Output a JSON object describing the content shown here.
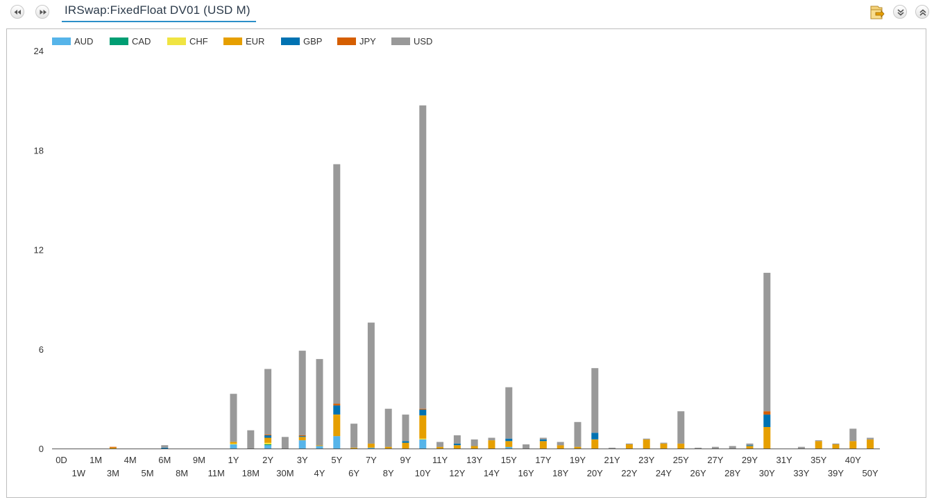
{
  "header": {
    "title": "IRSwap:FixedFloat DV01 (USD M)",
    "buttons": {
      "prev_icon": "rewind-icon",
      "next_icon": "fast-forward-icon",
      "export_icon": "folder-export-icon",
      "collapse_icon": "chevron-double-down-icon",
      "expand_icon": "chevron-double-up-icon"
    }
  },
  "colors": {
    "AUD": "#56b4e9",
    "CAD": "#009e73",
    "CHF": "#f0e442",
    "EUR": "#e69f00",
    "GBP": "#0072b2",
    "JPY": "#d55e00",
    "USD": "#999999",
    "accent": "#2c8fc8"
  },
  "chart_data": {
    "type": "bar",
    "stacked": true,
    "legend_position": "top-left",
    "grid": false,
    "ylim": [
      0,
      24
    ],
    "yticks": [
      "0",
      "6",
      "12",
      "18",
      "24"
    ],
    "categories": [
      "0D",
      "1W",
      "1M",
      "3M",
      "4M",
      "5M",
      "6M",
      "8M",
      "9M",
      "11M",
      "1Y",
      "18M",
      "2Y",
      "30M",
      "3Y",
      "4Y",
      "5Y",
      "6Y",
      "7Y",
      "8Y",
      "9Y",
      "10Y",
      "11Y",
      "12Y",
      "13Y",
      "14Y",
      "15Y",
      "16Y",
      "17Y",
      "18Y",
      "19Y",
      "20Y",
      "21Y",
      "22Y",
      "23Y",
      "24Y",
      "25Y",
      "26Y",
      "27Y",
      "28Y",
      "29Y",
      "30Y",
      "31Y",
      "33Y",
      "35Y",
      "39Y",
      "40Y",
      "50Y"
    ],
    "series": [
      {
        "name": "AUD",
        "values": [
          0,
          0,
          0,
          0,
          0,
          0,
          0,
          0,
          0,
          0,
          0.25,
          0,
          0.2,
          0,
          0.5,
          0.15,
          0.75,
          0,
          0.05,
          0,
          0,
          0.55,
          0,
          0,
          0,
          0,
          0.1,
          0,
          0,
          0,
          0,
          0,
          0,
          0,
          0,
          0,
          0,
          0,
          0,
          0,
          0,
          0,
          0,
          0,
          0,
          0,
          0,
          0
        ]
      },
      {
        "name": "CAD",
        "values": [
          0,
          0,
          0,
          0,
          0,
          0,
          0,
          0,
          0,
          0,
          0,
          0,
          0.05,
          0,
          0,
          0,
          0,
          0,
          0,
          0,
          0,
          0,
          0,
          0,
          0,
          0,
          0,
          0,
          0,
          0,
          0,
          0,
          0,
          0,
          0,
          0,
          0,
          0,
          0,
          0,
          0,
          0,
          0,
          0,
          0,
          0,
          0,
          0
        ]
      },
      {
        "name": "CHF",
        "values": [
          0,
          0,
          0,
          0,
          0,
          0,
          0,
          0,
          0,
          0,
          0.05,
          0,
          0.1,
          0,
          0,
          0,
          0,
          0,
          0,
          0,
          0,
          0.05,
          0,
          0,
          0,
          0,
          0,
          0,
          0,
          0,
          0,
          0,
          0,
          0,
          0,
          0,
          0,
          0,
          0,
          0,
          0,
          0,
          0,
          0,
          0,
          0,
          0,
          0
        ]
      },
      {
        "name": "EUR",
        "values": [
          0,
          0,
          0,
          0.05,
          0,
          0,
          0,
          0,
          0,
          0,
          0.1,
          0,
          0.3,
          0,
          0.2,
          0.05,
          1.3,
          0.05,
          0.25,
          0.1,
          0.35,
          1.4,
          0.1,
          0.2,
          0.15,
          0.5,
          0.35,
          0,
          0.45,
          0.2,
          0.1,
          0.55,
          0,
          0.25,
          0.55,
          0.3,
          0.3,
          0,
          0,
          0,
          0.15,
          1.3,
          0,
          0,
          0.45,
          0.25,
          0.45,
          0.55
        ]
      },
      {
        "name": "GBP",
        "values": [
          0,
          0,
          0,
          0,
          0,
          0,
          0.05,
          0,
          0,
          0,
          0,
          0,
          0.15,
          0,
          0.05,
          0,
          0.55,
          0,
          0,
          0,
          0.1,
          0.35,
          0,
          0.1,
          0,
          0,
          0.15,
          0,
          0.1,
          0,
          0,
          0.4,
          0,
          0,
          0,
          0,
          0,
          0,
          0,
          0,
          0.05,
          0.75,
          0,
          0,
          0,
          0,
          0,
          0
        ]
      },
      {
        "name": "JPY",
        "values": [
          0,
          0,
          0,
          0.05,
          0,
          0,
          0,
          0,
          0,
          0,
          0,
          0,
          0.05,
          0,
          0.05,
          0,
          0.1,
          0,
          0,
          0,
          0,
          0.05,
          0,
          0,
          0,
          0,
          0,
          0,
          0,
          0,
          0,
          0,
          0,
          0,
          0,
          0,
          0,
          0,
          0,
          0,
          0,
          0.2,
          0,
          0,
          0,
          0,
          0,
          0
        ]
      },
      {
        "name": "USD",
        "values": [
          0,
          0,
          0,
          0,
          0,
          0,
          0.15,
          0,
          0,
          0,
          2.9,
          1.1,
          3.95,
          0.7,
          5.1,
          5.2,
          14.45,
          1.45,
          7.3,
          2.3,
          1.6,
          18.3,
          0.3,
          0.5,
          0.4,
          0.15,
          3.1,
          0.25,
          0.1,
          0.2,
          1.5,
          3.9,
          0.05,
          0.05,
          0.05,
          0.05,
          1.95,
          0.05,
          0.1,
          0.15,
          0.1,
          8.35,
          0,
          0.1,
          0.05,
          0.05,
          0.75,
          0.1
        ]
      }
    ]
  }
}
